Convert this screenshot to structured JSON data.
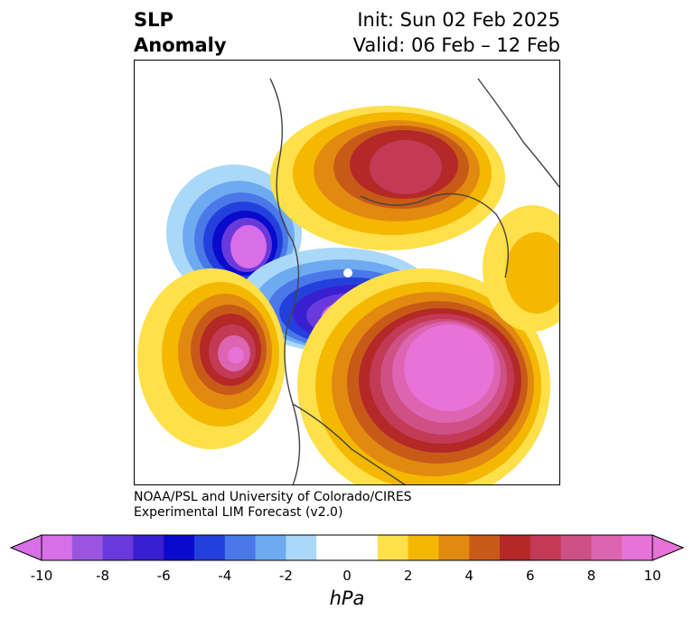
{
  "header": {
    "title_line1": "SLP",
    "title_line2": "Anomaly",
    "init_text": "Init: Sun 02 Feb 2025",
    "valid_text": "Valid: 06 Feb – 12 Feb"
  },
  "credit": {
    "line1": "NOAA/PSL and University of Colorado/CIRES",
    "line2": "Experimental LIM Forecast (v2.0)"
  },
  "colorbar": {
    "units": "hPa",
    "tick_labels": [
      "-10",
      "-8",
      "-6",
      "-4",
      "-2",
      "0",
      "2",
      "4",
      "6",
      "8",
      "10"
    ],
    "colors": [
      "#d86ee8",
      "#9b55e0",
      "#6a39dc",
      "#3a1fd0",
      "#0a0acc",
      "#2440dc",
      "#4a78e8",
      "#6eaaf0",
      "#aad8f8",
      "#ffffff",
      "#ffffff",
      "#fde04a",
      "#f4b800",
      "#e28a10",
      "#c85a18",
      "#b42828",
      "#c23a55",
      "#cf5084",
      "#dc64b0",
      "#e872d8"
    ]
  }
}
